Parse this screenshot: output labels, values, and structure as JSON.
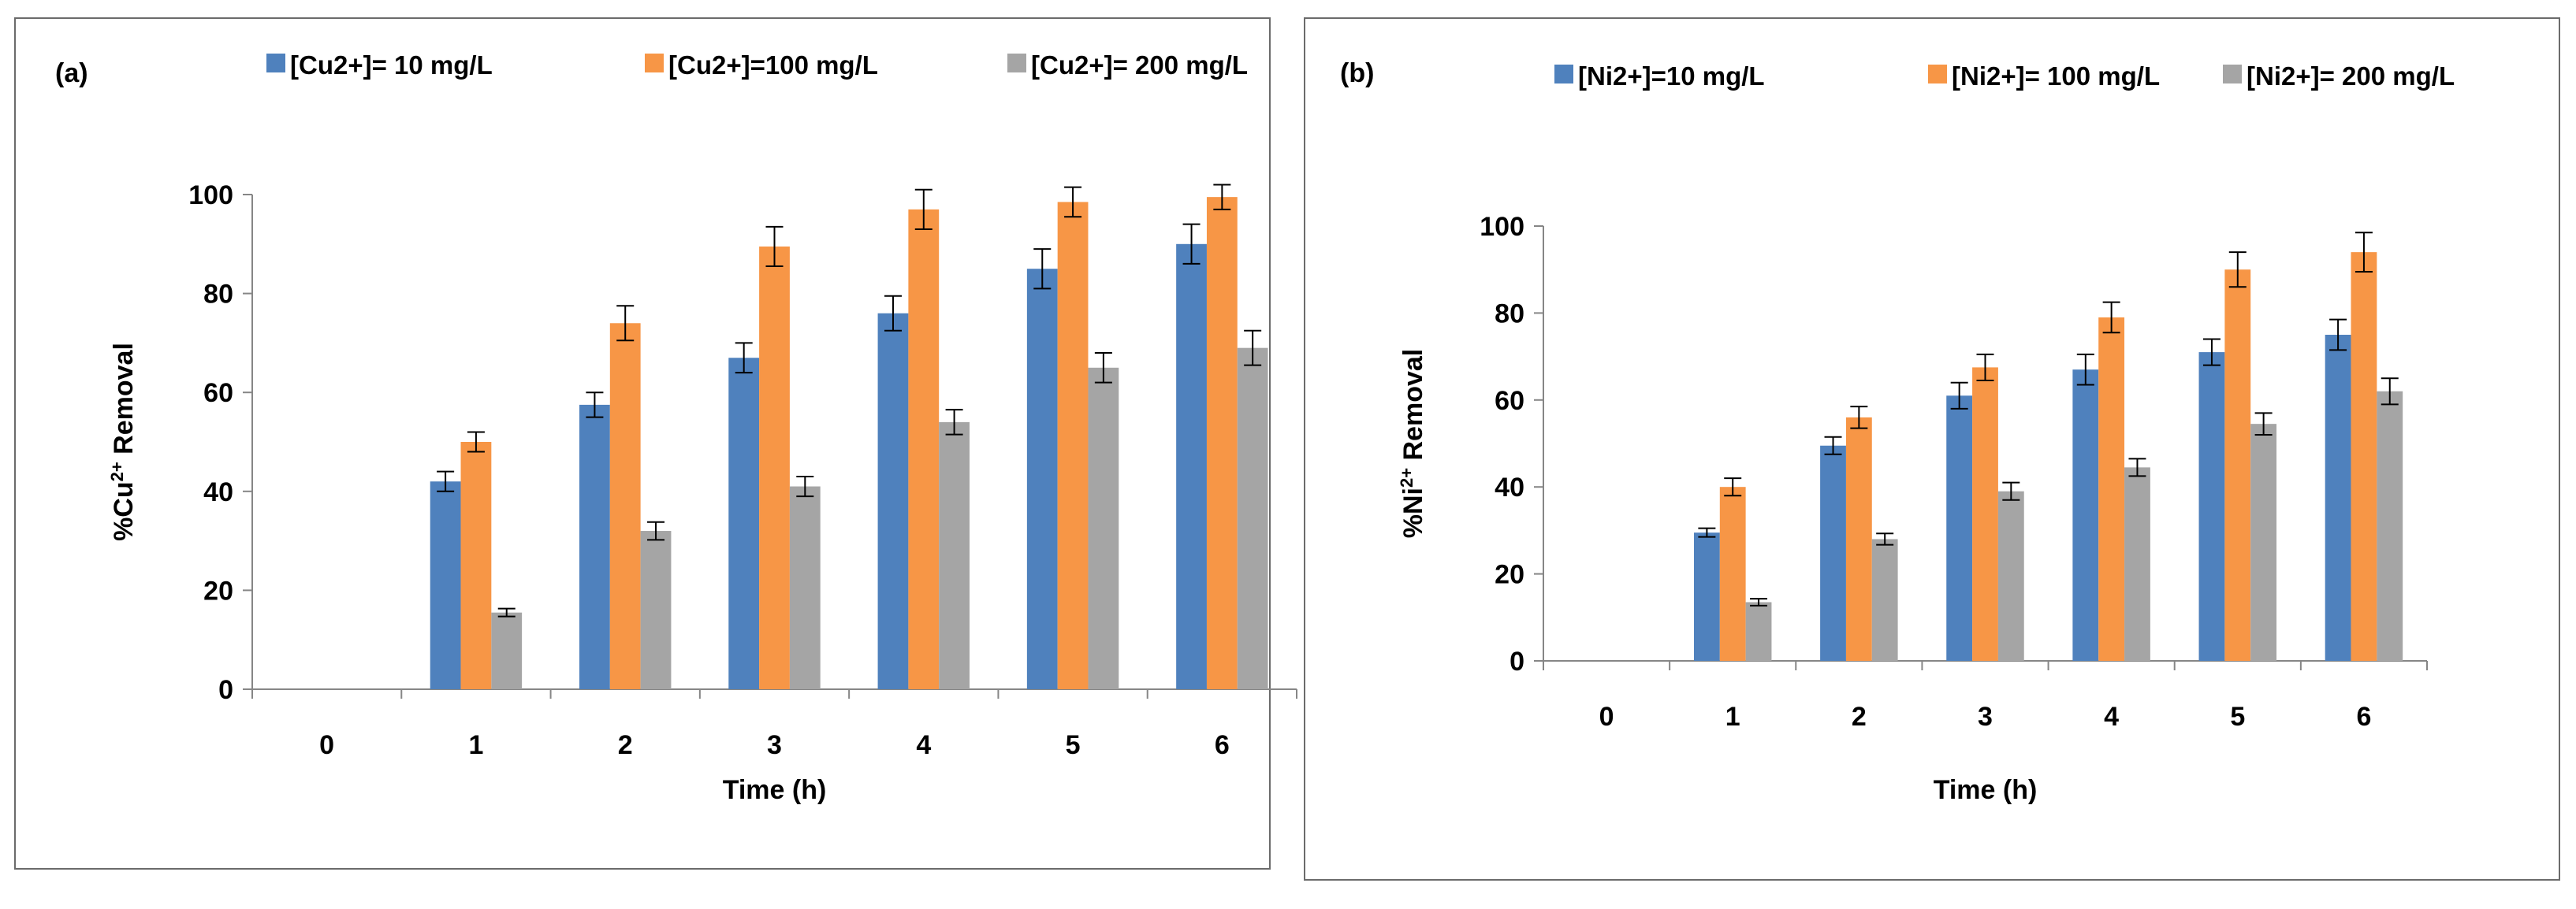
{
  "colors": {
    "series1": "#4f81bd",
    "series2": "#f79646",
    "series3": "#a5a5a5",
    "axis": "#868686",
    "error": "#000000"
  },
  "chart_data": [
    {
      "type": "bar",
      "panel_label": "(a)",
      "title": "",
      "xlabel": "Time (h)",
      "ylabel_parts": [
        "%Cu",
        "2+",
        " Removal"
      ],
      "categories": [
        "0",
        "1",
        "2",
        "3",
        "4",
        "5",
        "6"
      ],
      "ylim": [
        0,
        100
      ],
      "yticks": [
        "0",
        "20",
        "40",
        "60",
        "80",
        "100"
      ],
      "legend_position": "top",
      "series": [
        {
          "name": "[Cu2+]= 10 mg/L",
          "values": [
            0,
            42,
            57.5,
            67,
            76,
            85,
            90
          ],
          "errors": [
            0,
            2,
            2.5,
            3,
            3.5,
            4,
            4
          ]
        },
        {
          "name": "[Cu2+]=100 mg/L",
          "values": [
            0,
            50,
            74,
            89.5,
            97,
            98.5,
            99.5
          ],
          "errors": [
            0,
            2,
            3.5,
            4,
            4,
            3,
            2.5
          ]
        },
        {
          "name": "[Cu2+]= 200 mg/L",
          "values": [
            0,
            15.5,
            32,
            41,
            54,
            65,
            69
          ],
          "errors": [
            0,
            0.8,
            1.8,
            2,
            2.5,
            3,
            3.5
          ]
        }
      ]
    },
    {
      "type": "bar",
      "panel_label": "(b)",
      "title": "",
      "xlabel": "Time (h)",
      "ylabel_parts": [
        "%Ni",
        "2+",
        " Removal"
      ],
      "categories": [
        "0",
        "1",
        "2",
        "3",
        "4",
        "5",
        "6"
      ],
      "ylim": [
        0,
        100
      ],
      "yticks": [
        "0",
        "20",
        "40",
        "60",
        "80",
        "100"
      ],
      "legend_position": "top",
      "series": [
        {
          "name": "[Ni2+]=10 mg/L",
          "values": [
            0,
            29.5,
            49.5,
            61,
            67,
            71,
            75
          ],
          "errors": [
            0,
            1,
            2,
            3,
            3.5,
            3,
            3.5
          ]
        },
        {
          "name": "[Ni2+]= 100 mg/L",
          "values": [
            0,
            40,
            56,
            67.5,
            79,
            90,
            94
          ],
          "errors": [
            0,
            2,
            2.5,
            3,
            3.5,
            4,
            4.5
          ]
        },
        {
          "name": "[Ni2+]= 200 mg/L",
          "values": [
            0,
            13.5,
            28,
            39,
            44.5,
            54.5,
            62
          ],
          "errors": [
            0,
            0.8,
            1.3,
            2,
            2,
            2.5,
            3
          ]
        }
      ]
    }
  ]
}
